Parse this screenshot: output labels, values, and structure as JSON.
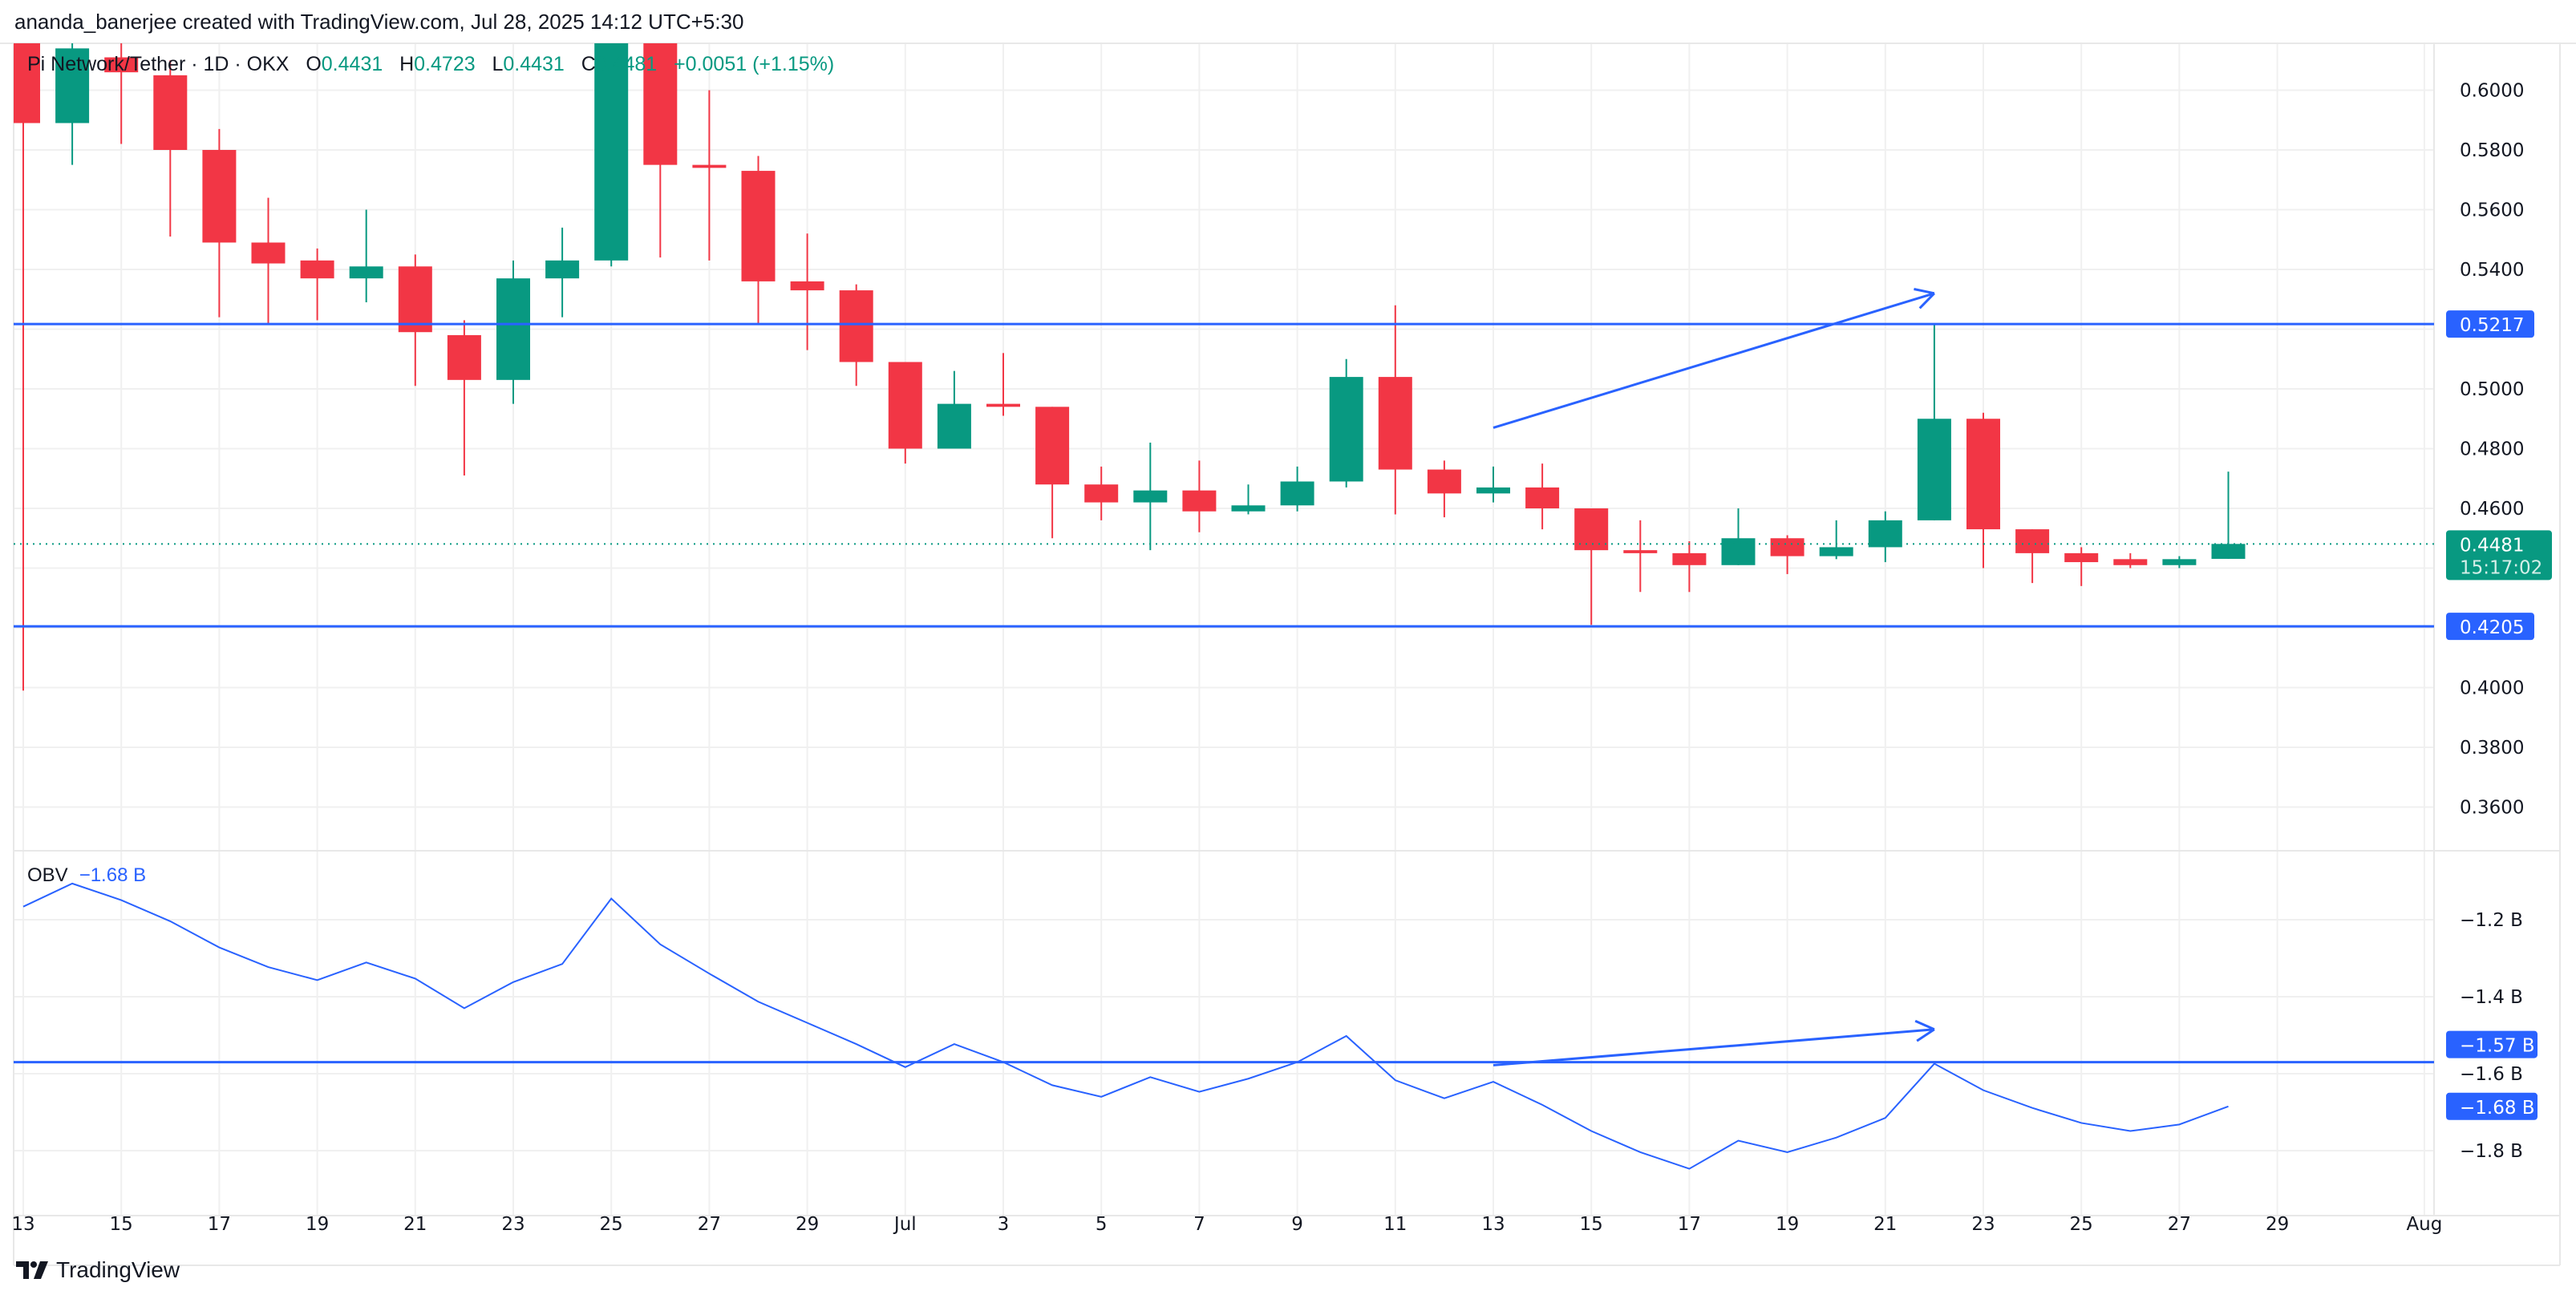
{
  "credit": "ananda_banerjee created with TradingView.com, Jul 28, 2025 14:12 UTC+5:30",
  "legend": {
    "symbol": "Pi Network/Tether · 1D · OKX",
    "o_label": "O",
    "o": "0.4431",
    "h_label": "H",
    "h": "0.4723",
    "l_label": "L",
    "l": "0.4431",
    "c_label": "C",
    "c": "0.4481",
    "change": "+0.0051 (+1.15%)"
  },
  "obv_legend": {
    "label": "OBV",
    "value": "−1.68 B"
  },
  "brand": "TradingView",
  "colors": {
    "up": "#089981",
    "down": "#f23645",
    "accent": "#2962ff",
    "grid": "#f0f0f0"
  },
  "chart_data": [
    {
      "type": "candlestick",
      "title": "Pi Network/Tether · 1D · OKX",
      "ylim": [
        0.34,
        0.62
      ],
      "y_ticks": [
        "0.6000",
        "0.5800",
        "0.5600",
        "0.5400",
        "0.5000",
        "0.4800",
        "0.4600",
        "0.4000",
        "0.3800",
        "0.3600"
      ],
      "x_ticks": [
        "13",
        "15",
        "17",
        "19",
        "21",
        "23",
        "25",
        "27",
        "29",
        "Jul",
        "3",
        "5",
        "7",
        "9",
        "11",
        "13",
        "15",
        "17",
        "19",
        "21",
        "23",
        "25",
        "27",
        "29",
        "Aug"
      ],
      "grid": true,
      "candles": [
        [
          "Jun 13",
          0.622,
          0.63,
          0.399,
          0.589
        ],
        [
          "Jun 14",
          0.589,
          0.625,
          0.575,
          0.614
        ],
        [
          "Jun 15",
          0.611,
          0.618,
          0.582,
          0.606
        ],
        [
          "Jun 16",
          0.605,
          0.61,
          0.551,
          0.58
        ],
        [
          "Jun 17",
          0.58,
          0.587,
          0.524,
          0.549
        ],
        [
          "Jun 18",
          0.549,
          0.564,
          0.522,
          0.542
        ],
        [
          "Jun 19",
          0.543,
          0.547,
          0.523,
          0.537
        ],
        [
          "Jun 20",
          0.537,
          0.56,
          0.529,
          0.541
        ],
        [
          "Jun 21",
          0.541,
          0.545,
          0.501,
          0.519
        ],
        [
          "Jun 22",
          0.518,
          0.523,
          0.471,
          0.503
        ],
        [
          "Jun 23",
          0.503,
          0.543,
          0.495,
          0.537
        ],
        [
          "Jun 24",
          0.537,
          0.554,
          0.524,
          0.543
        ],
        [
          "Jun 25",
          0.543,
          0.625,
          0.541,
          0.62
        ],
        [
          "Jun 26",
          0.62,
          0.625,
          0.544,
          0.575
        ],
        [
          "Jun 27",
          0.575,
          0.6,
          0.543,
          0.574
        ],
        [
          "Jun 28",
          0.573,
          0.578,
          0.522,
          0.536
        ],
        [
          "Jun 29",
          0.536,
          0.552,
          0.513,
          0.533
        ],
        [
          "Jun 30",
          0.533,
          0.535,
          0.501,
          0.509
        ],
        [
          "Jul 1",
          0.509,
          0.509,
          0.475,
          0.48
        ],
        [
          "Jul 2",
          0.48,
          0.506,
          0.48,
          0.495
        ],
        [
          "Jul 3",
          0.495,
          0.512,
          0.491,
          0.494
        ],
        [
          "Jul 4",
          0.494,
          0.494,
          0.45,
          0.468
        ],
        [
          "Jul 5",
          0.468,
          0.474,
          0.456,
          0.462
        ],
        [
          "Jul 6",
          0.462,
          0.482,
          0.446,
          0.466
        ],
        [
          "Jul 7",
          0.466,
          0.476,
          0.452,
          0.459
        ],
        [
          "Jul 8",
          0.459,
          0.468,
          0.458,
          0.461
        ],
        [
          "Jul 9",
          0.461,
          0.474,
          0.459,
          0.469
        ],
        [
          "Jul 10",
          0.469,
          0.51,
          0.467,
          0.504
        ],
        [
          "Jul 11",
          0.504,
          0.528,
          0.458,
          0.473
        ],
        [
          "Jul 12",
          0.473,
          0.476,
          0.457,
          0.465
        ],
        [
          "Jul 13",
          0.465,
          0.474,
          0.462,
          0.467
        ],
        [
          "Jul 14",
          0.467,
          0.475,
          0.453,
          0.46
        ],
        [
          "Jul 15",
          0.46,
          0.46,
          0.421,
          0.446
        ],
        [
          "Jul 16",
          0.446,
          0.456,
          0.432,
          0.445
        ],
        [
          "Jul 17",
          0.445,
          0.449,
          0.432,
          0.441
        ],
        [
          "Jul 18",
          0.441,
          0.46,
          0.441,
          0.45
        ],
        [
          "Jul 19",
          0.45,
          0.451,
          0.438,
          0.444
        ],
        [
          "Jul 20",
          0.444,
          0.456,
          0.443,
          0.447
        ],
        [
          "Jul 21",
          0.447,
          0.459,
          0.442,
          0.456
        ],
        [
          "Jul 22",
          0.456,
          0.522,
          0.456,
          0.49
        ],
        [
          "Jul 23",
          0.49,
          0.492,
          0.44,
          0.453
        ],
        [
          "Jul 24",
          0.453,
          0.453,
          0.435,
          0.445
        ],
        [
          "Jul 25",
          0.445,
          0.447,
          0.434,
          0.442
        ],
        [
          "Jul 26",
          0.443,
          0.445,
          0.44,
          0.441
        ],
        [
          "Jul 27",
          0.441,
          0.444,
          0.44,
          0.443
        ],
        [
          "Jul 28",
          0.4431,
          0.4723,
          0.4431,
          0.4481
        ]
      ],
      "last_price": {
        "value": "0.4481",
        "countdown": "15:17:02"
      },
      "horizontal_lines": [
        {
          "value": 0.5217,
          "label": "0.5217"
        },
        {
          "value": 0.4205,
          "label": "0.4205"
        }
      ],
      "trend_arrow": {
        "from": [
          "Jul 13",
          0.487
        ],
        "to": [
          "Jul 22",
          0.532
        ]
      }
    },
    {
      "type": "line",
      "name": "OBV",
      "unit": "B",
      "ylim": [
        -1.92,
        -1.03
      ],
      "y_ticks": [
        "−1.2 B",
        "−1.4 B",
        "−1.6 B",
        "−1.8 B"
      ],
      "values": [
        -1.166,
        -1.106,
        -1.149,
        -1.204,
        -1.272,
        -1.323,
        -1.357,
        -1.311,
        -1.353,
        -1.43,
        -1.362,
        -1.315,
        -1.145,
        -1.264,
        -1.34,
        -1.413,
        -1.468,
        -1.523,
        -1.583,
        -1.523,
        -1.57,
        -1.63,
        -1.66,
        -1.609,
        -1.647,
        -1.613,
        -1.57,
        -1.502,
        -1.617,
        -1.664,
        -1.621,
        -1.681,
        -1.749,
        -1.804,
        -1.847,
        -1.774,
        -1.804,
        -1.766,
        -1.715,
        -1.574,
        -1.643,
        -1.689,
        -1.728,
        -1.749,
        -1.732,
        -1.685
      ],
      "last_value_label": "−1.68 B",
      "horizontal_lines": [
        {
          "value": -1.57,
          "label": "−1.57 B"
        }
      ],
      "trend_arrow": {
        "from": [
          "Jul 13",
          -1.578
        ],
        "to": [
          "Jul 22",
          -1.485
        ]
      }
    }
  ]
}
